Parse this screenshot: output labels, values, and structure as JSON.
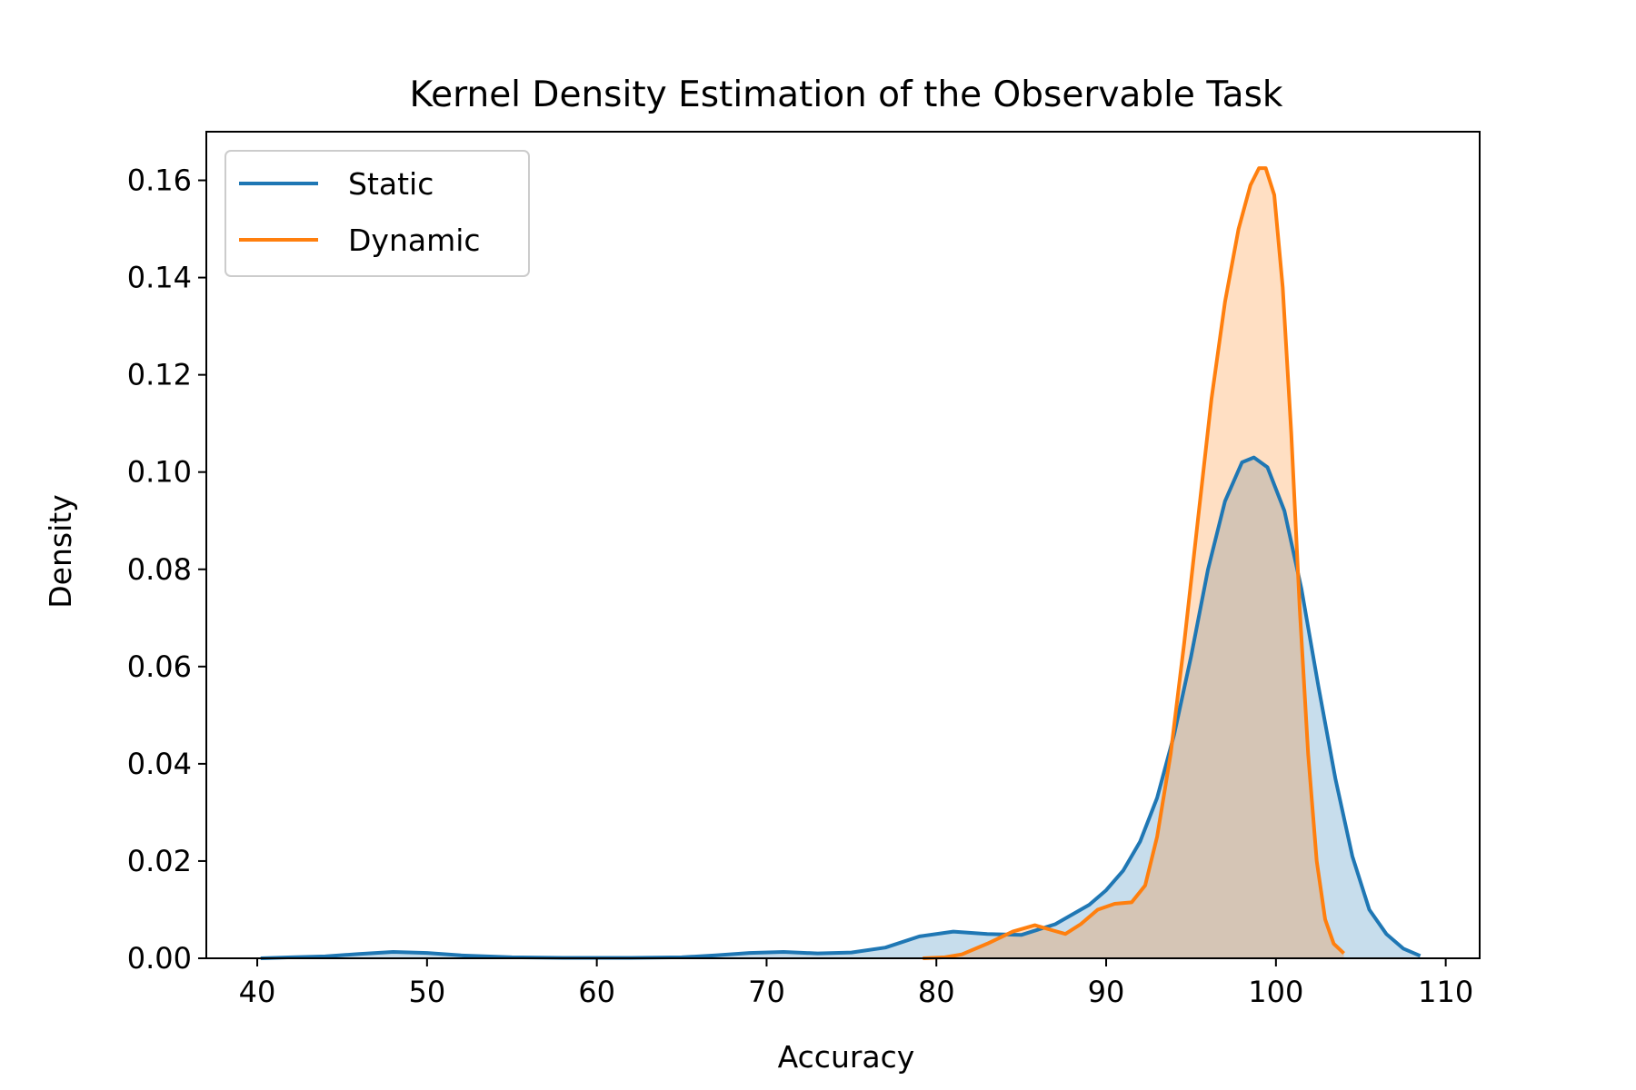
{
  "chart_data": {
    "type": "area",
    "title": "Kernel Density Estimation of the Observable Task",
    "xlabel": "Accuracy",
    "ylabel": "Density",
    "xlim": [
      37,
      112
    ],
    "ylim": [
      0,
      0.17
    ],
    "xticks": [
      40,
      50,
      60,
      70,
      80,
      90,
      100,
      110
    ],
    "yticks": [
      0.0,
      0.02,
      0.04,
      0.06,
      0.08,
      0.1,
      0.12,
      0.14,
      0.16
    ],
    "ytick_labels": [
      "0.00",
      "0.02",
      "0.04",
      "0.06",
      "0.08",
      "0.10",
      "0.12",
      "0.14",
      "0.16"
    ],
    "grid": false,
    "legend": "upper-left",
    "series": [
      {
        "name": "Static",
        "color": "#1f77b4",
        "fill": "#c7dbee",
        "points": [
          [
            40.2,
            0.0
          ],
          [
            42,
            0.0002
          ],
          [
            44,
            0.0004
          ],
          [
            46,
            0.0009
          ],
          [
            48,
            0.0013
          ],
          [
            50,
            0.0011
          ],
          [
            52,
            0.0006
          ],
          [
            55,
            0.0002
          ],
          [
            58,
            0.0001
          ],
          [
            62,
            0.0001
          ],
          [
            65,
            0.0002
          ],
          [
            67,
            0.0006
          ],
          [
            69,
            0.0011
          ],
          [
            71,
            0.0013
          ],
          [
            73,
            0.001
          ],
          [
            75,
            0.0012
          ],
          [
            77,
            0.0022
          ],
          [
            79,
            0.0045
          ],
          [
            81,
            0.0055
          ],
          [
            83,
            0.005
          ],
          [
            85,
            0.0048
          ],
          [
            87,
            0.007
          ],
          [
            89,
            0.011
          ],
          [
            90,
            0.014
          ],
          [
            91,
            0.018
          ],
          [
            92,
            0.024
          ],
          [
            93,
            0.033
          ],
          [
            94,
            0.046
          ],
          [
            95,
            0.062
          ],
          [
            96,
            0.08
          ],
          [
            97,
            0.094
          ],
          [
            98,
            0.102
          ],
          [
            98.7,
            0.103
          ],
          [
            99.5,
            0.101
          ],
          [
            100.5,
            0.092
          ],
          [
            101.5,
            0.076
          ],
          [
            102.5,
            0.056
          ],
          [
            103.5,
            0.037
          ],
          [
            104.5,
            0.021
          ],
          [
            105.5,
            0.01
          ],
          [
            106.5,
            0.005
          ],
          [
            107.5,
            0.002
          ],
          [
            108.5,
            0.0005
          ]
        ]
      },
      {
        "name": "Dynamic",
        "color": "#ff7f0e",
        "fill": "#fddab6",
        "points": [
          [
            79.2,
            0.0
          ],
          [
            80.5,
            0.0002
          ],
          [
            81.5,
            0.0008
          ],
          [
            83,
            0.003
          ],
          [
            84.5,
            0.0055
          ],
          [
            85.8,
            0.0068
          ],
          [
            86.8,
            0.0058
          ],
          [
            87.6,
            0.005
          ],
          [
            88.5,
            0.007
          ],
          [
            89.5,
            0.01
          ],
          [
            90.5,
            0.0112
          ],
          [
            91.5,
            0.0115
          ],
          [
            92.3,
            0.015
          ],
          [
            93,
            0.025
          ],
          [
            93.8,
            0.042
          ],
          [
            94.6,
            0.065
          ],
          [
            95.4,
            0.09
          ],
          [
            96.2,
            0.115
          ],
          [
            97,
            0.135
          ],
          [
            97.8,
            0.15
          ],
          [
            98.5,
            0.159
          ],
          [
            99.0,
            0.1625
          ],
          [
            99.4,
            0.1625
          ],
          [
            99.9,
            0.157
          ],
          [
            100.4,
            0.138
          ],
          [
            100.9,
            0.108
          ],
          [
            101.4,
            0.072
          ],
          [
            101.9,
            0.042
          ],
          [
            102.4,
            0.02
          ],
          [
            102.9,
            0.008
          ],
          [
            103.4,
            0.003
          ],
          [
            104.0,
            0.001
          ]
        ]
      }
    ]
  }
}
